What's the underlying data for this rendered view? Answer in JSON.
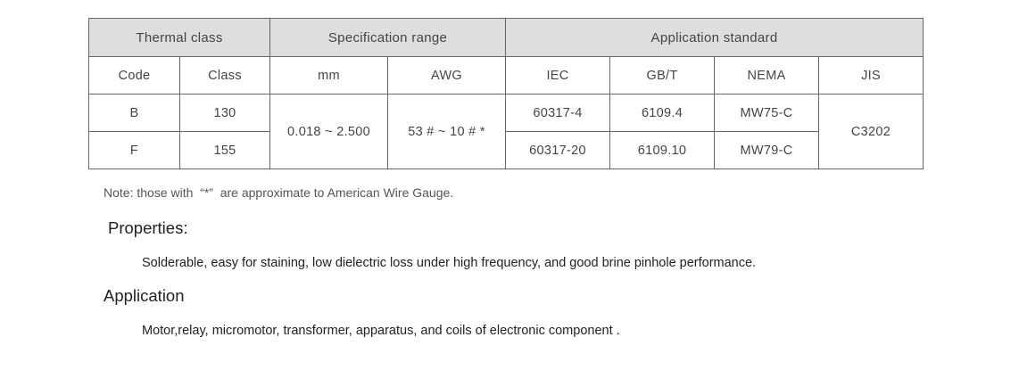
{
  "table": {
    "group_headers": [
      "Thermal class",
      "Specification range",
      "Application standard"
    ],
    "sub_headers": [
      "Code",
      "Class",
      "mm",
      "AWG",
      "IEC",
      "GB/T",
      "NEMA",
      "JIS"
    ],
    "rows": [
      {
        "code": "B",
        "class": "130",
        "iec": "60317-4",
        "gbt": "6109.4",
        "nema": "MW75-C"
      },
      {
        "code": "F",
        "class": "155",
        "iec": "60317-20",
        "gbt": "6109.10",
        "nema": "MW79-C"
      }
    ],
    "mm_range": "0.018 ~ 2.500",
    "awg_range": "53 # ~ 10 # *",
    "jis": "C3202"
  },
  "note": "Note: those with  “*”  are approximate to American Wire Gauge.",
  "properties": {
    "title": "Properties:",
    "text": "Solderable, easy for staining, low dielectric loss under high frequency, and good brine pinhole performance."
  },
  "application": {
    "title": "Application",
    "text": "Motor,relay, micromotor, transformer, apparatus, and coils of electronic component ."
  }
}
